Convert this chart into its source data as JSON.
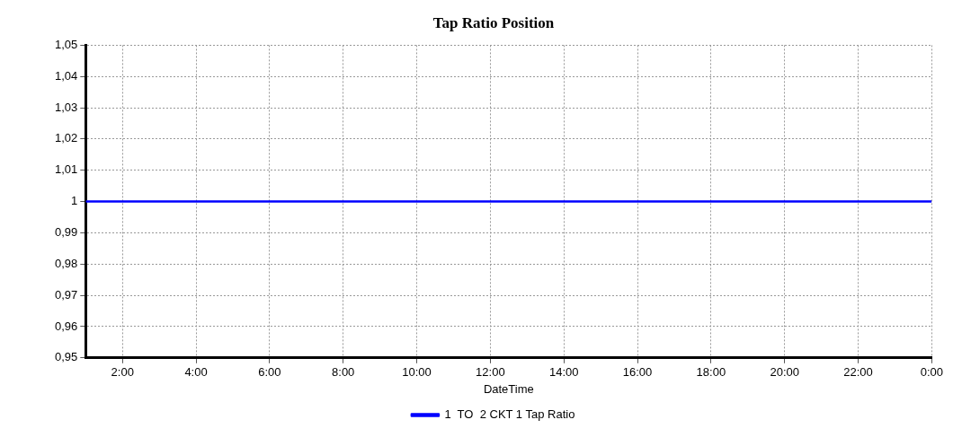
{
  "chart_data": {
    "type": "line",
    "title": "Tap Ratio Position",
    "xlabel": "DateTime",
    "x": [
      1,
      24
    ],
    "xlim": [
      1,
      24
    ],
    "xticks": [
      {
        "value": 2,
        "label": "2:00"
      },
      {
        "value": 4,
        "label": "4:00"
      },
      {
        "value": 6,
        "label": "6:00"
      },
      {
        "value": 8,
        "label": "8:00"
      },
      {
        "value": 10,
        "label": "10:00"
      },
      {
        "value": 12,
        "label": "12:00"
      },
      {
        "value": 14,
        "label": "14:00"
      },
      {
        "value": 16,
        "label": "16:00"
      },
      {
        "value": 18,
        "label": "18:00"
      },
      {
        "value": 20,
        "label": "20:00"
      },
      {
        "value": 22,
        "label": "22:00"
      },
      {
        "value": 24,
        "label": "0:00"
      }
    ],
    "ylim": [
      0.95,
      1.05
    ],
    "yticks": [
      {
        "value": 0.95,
        "label": "0,95"
      },
      {
        "value": 0.96,
        "label": "0,96"
      },
      {
        "value": 0.97,
        "label": "0,97"
      },
      {
        "value": 0.98,
        "label": "0,98"
      },
      {
        "value": 0.99,
        "label": "0,99"
      },
      1,
      {
        "value": 1.01,
        "label": "1,01"
      },
      {
        "value": 1.02,
        "label": "1,02"
      },
      {
        "value": 1.03,
        "label": "1,03"
      },
      {
        "value": 1.04,
        "label": "1,04"
      },
      {
        "value": 1.05,
        "label": "1,05"
      }
    ],
    "series": [
      {
        "name": "1  TO  2 CKT 1 Tap Ratio",
        "color": "#0000ff",
        "values": [
          1,
          1
        ]
      }
    ],
    "grid": true,
    "legend": "bottom",
    "marker": "none",
    "line_style": "solid"
  }
}
